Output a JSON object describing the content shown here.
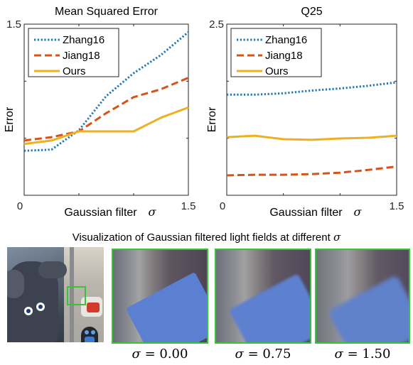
{
  "chart_data": [
    {
      "type": "line",
      "title": "Mean Squared Error",
      "xlabel": "Gaussian filter",
      "xlabel_symbol": "σ",
      "ylabel": "Error",
      "xlim": [
        0,
        1.5
      ],
      "ylim": [
        0,
        1.5
      ],
      "x_tick_labels": [
        "0",
        "1.5"
      ],
      "y_tick_labels": [
        "1.5"
      ],
      "x": [
        0,
        0.25,
        0.5,
        0.75,
        1.0,
        1.25,
        1.5
      ],
      "series": [
        {
          "name": "Zhang16",
          "color": "#1f77b4",
          "style": "dotted",
          "values": [
            0.39,
            0.4,
            0.57,
            0.87,
            1.07,
            1.23,
            1.43
          ]
        },
        {
          "name": "Jiang18",
          "color": "#d95319",
          "style": "dashed",
          "values": [
            0.48,
            0.51,
            0.56,
            0.72,
            0.86,
            0.93,
            1.03
          ]
        },
        {
          "name": "Ours",
          "color": "#edb120",
          "style": "solid",
          "values": [
            0.45,
            0.48,
            0.56,
            0.56,
            0.56,
            0.68,
            0.77
          ]
        }
      ],
      "legend": "top-left",
      "grid": false
    },
    {
      "type": "line",
      "title": "Q25",
      "xlabel": "Gaussian filter",
      "xlabel_symbol": "σ",
      "ylabel": "Error",
      "xlim": [
        0,
        1.5
      ],
      "ylim": [
        0,
        2.5
      ],
      "x_tick_labels": [
        "0",
        "1.5"
      ],
      "y_tick_labels": [
        "2.5"
      ],
      "x": [
        0,
        0.25,
        0.5,
        0.75,
        1.0,
        1.25,
        1.5
      ],
      "series": [
        {
          "name": "Zhang16",
          "color": "#1f77b4",
          "style": "dotted",
          "values": [
            1.47,
            1.47,
            1.49,
            1.53,
            1.56,
            1.6,
            1.65
          ]
        },
        {
          "name": "Jiang18",
          "color": "#d95319",
          "style": "dashed",
          "values": [
            0.29,
            0.3,
            0.3,
            0.31,
            0.33,
            0.37,
            0.42
          ]
        },
        {
          "name": "Ours",
          "color": "#edb120",
          "style": "solid",
          "values": [
            0.85,
            0.87,
            0.82,
            0.81,
            0.83,
            0.84,
            0.87
          ]
        }
      ],
      "legend": "top-left",
      "grid": false
    }
  ],
  "caption": {
    "text": "Visualization of Gaussian filtered light fields at different",
    "symbol": "σ"
  },
  "thumbnails": [
    {
      "symbol": "σ",
      "eq": " = 0.00"
    },
    {
      "symbol": "σ",
      "eq": " = 0.75"
    },
    {
      "symbol": "σ",
      "eq": " = 1.50"
    }
  ],
  "colors": {
    "highlight_border": "#39c339"
  }
}
